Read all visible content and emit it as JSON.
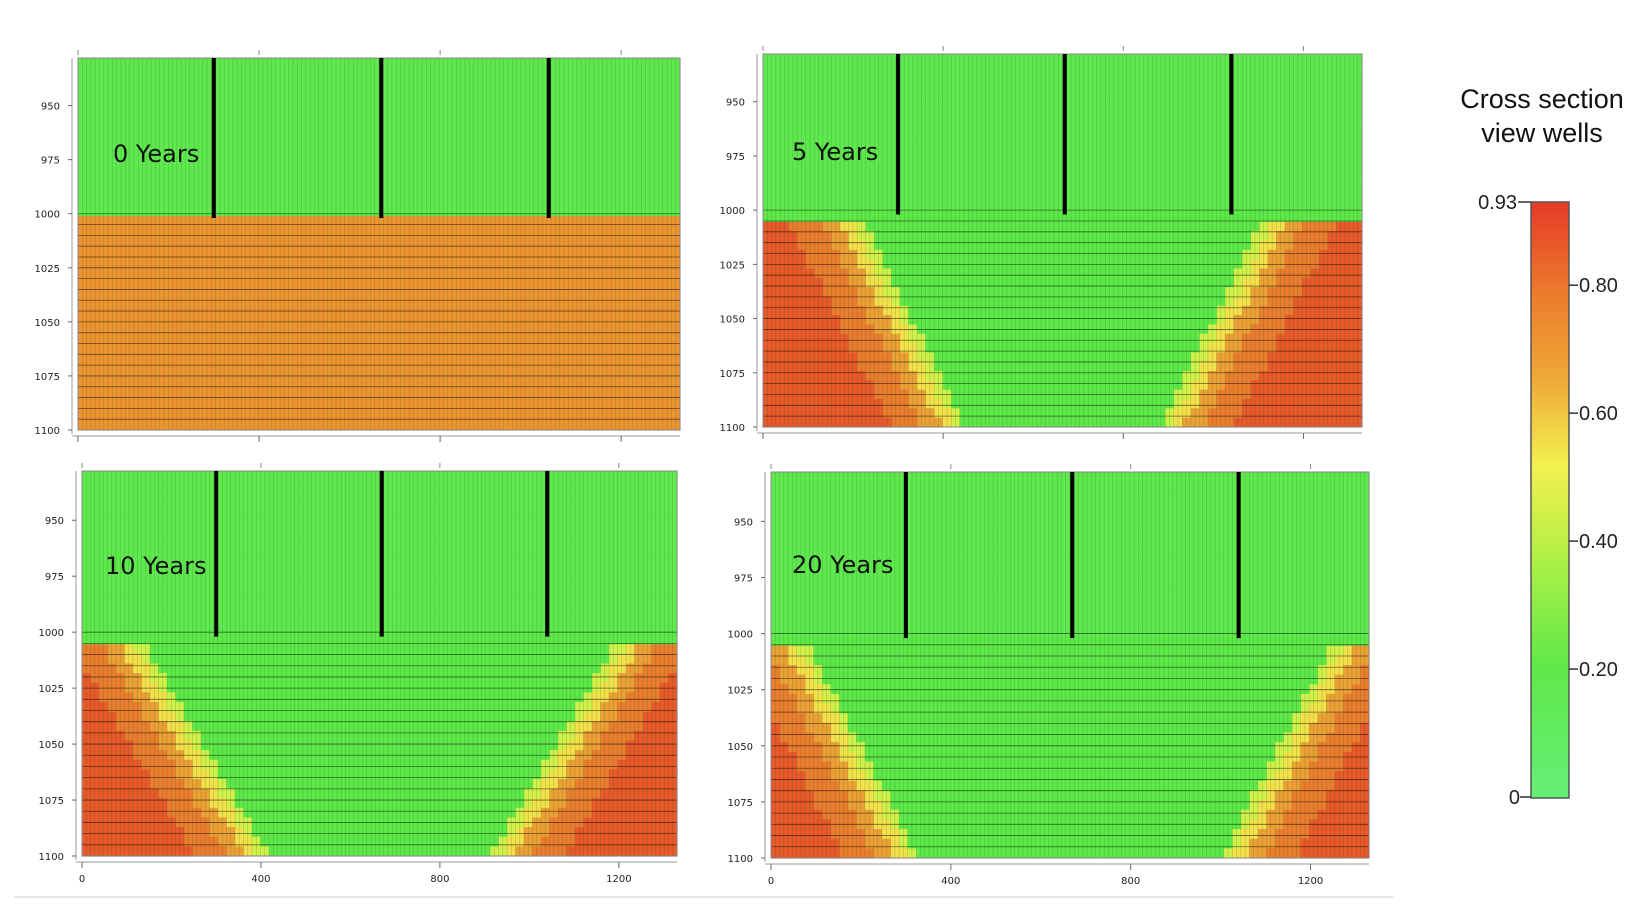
{
  "chart_data": {
    "type": "heatmap",
    "description_units": {
      "x": "horizontal distance",
      "y": "depth"
    },
    "colorbar": {
      "title_line1": "Cross section",
      "title_line2": "view wells",
      "min": 0,
      "max": 0.93,
      "min_label": "0",
      "max_label": "0.93",
      "ticks": [
        {
          "value": 0.8,
          "label": "0.80"
        },
        {
          "value": 0.6,
          "label": "0.60"
        },
        {
          "value": 0.4,
          "label": "0.40"
        },
        {
          "value": 0.2,
          "label": "0.20"
        }
      ],
      "colors": {
        "low": "#66ee77",
        "mid": "#f4f050",
        "mid_orange": "#ee9932",
        "high": "#e53a28"
      }
    },
    "grid": {
      "x_range": [
        0,
        1330
      ],
      "y_range": [
        928,
        1100
      ],
      "interface_depth": 1000,
      "x_ticks": [
        0,
        400,
        800,
        1200
      ],
      "x_tick_labels": [
        "0",
        "400",
        "800",
        "1200"
      ],
      "y_ticks": [
        950,
        975,
        1000,
        1025,
        1050,
        1075,
        1100
      ],
      "y_tick_labels": [
        "950",
        "975",
        "1000",
        "1025",
        "1050",
        "1075",
        "1100"
      ],
      "wells_x": [
        300,
        670,
        1040
      ],
      "well_bottom": 1002
    },
    "panels": [
      {
        "id": "p0",
        "label": "0 Years",
        "time_years": 0
      },
      {
        "id": "p5",
        "label": "5 Years",
        "time_years": 5
      },
      {
        "id": "p10",
        "label": "10 Years",
        "time_years": 10
      },
      {
        "id": "p20",
        "label": "20 Years",
        "time_years": 20
      }
    ]
  }
}
